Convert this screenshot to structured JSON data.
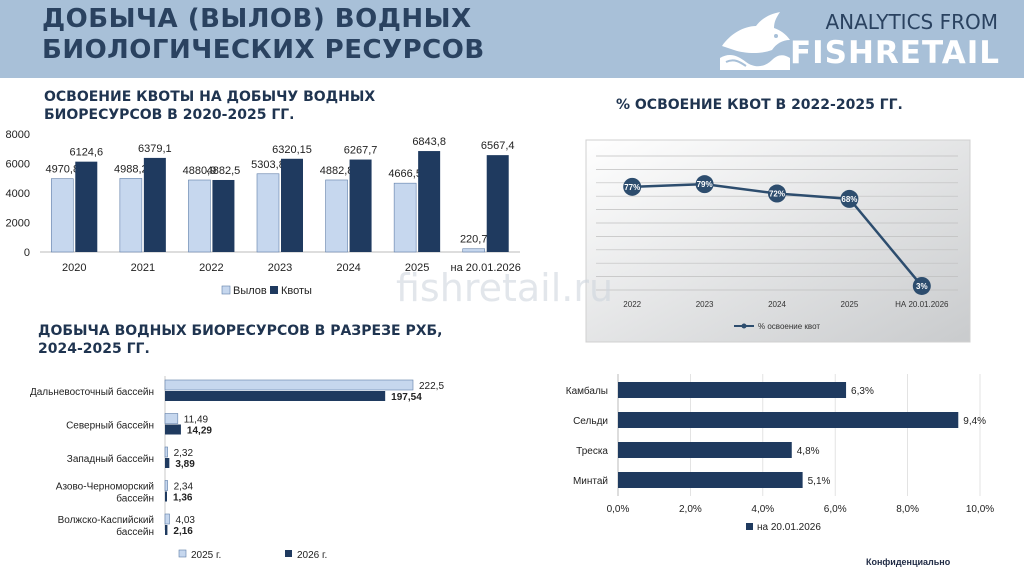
{
  "header": {
    "title_line1": "ДОБЫЧА (ВЫЛОВ) ВОДНЫХ",
    "title_line2": "БИОЛОГИЧЕСКИХ РЕСУРСОВ",
    "brand_line1": "ANALYTICS FROM",
    "brand_line2": "FISHRETAIL"
  },
  "watermark": "fishretail.ru",
  "footer": "Конфиденциально",
  "colors": {
    "catch": "#c6d7ee",
    "quota": "#1f3a5f",
    "line": "#2d4d6e",
    "bar": "#1f3a5f"
  },
  "sections": {
    "quota_title_1": "ОСВОЕНИЕ КВОТЫ НА ДОБЫЧУ ВОДНЫХ",
    "quota_title_2": "БИОРЕСУРСОВ В 2020-2025 ГГ.",
    "percent_title": "% ОСВОЕНИЕ КВОТ В 2022-2025 ГГ.",
    "basin_title_1": "ДОБЫЧА ВОДНЫХ БИОРЕСУРСОВ В РАЗРЕЗЕ РХБ,",
    "basin_title_2": "2024-2025 ГГ."
  },
  "chart_data": [
    {
      "type": "bar",
      "categories": [
        "2020",
        "2021",
        "2022",
        "2023",
        "2024",
        "2025",
        "на 20.01.2026"
      ],
      "series": [
        {
          "name": "Вылов",
          "values": [
            4970.8,
            4988.2,
            4880.9,
            5303.8,
            4882.8,
            4666.5,
            220.7
          ],
          "labels": [
            "4970,8",
            "4988,2",
            "4880,9",
            "5303,8",
            "4882,8",
            "4666,5",
            "220,7"
          ]
        },
        {
          "name": "Квоты",
          "values": [
            6124.6,
            6379.1,
            4882.5,
            6320.15,
            6267.7,
            6843.8,
            6567.4
          ],
          "labels": [
            "6124,6",
            "6379,1",
            "4882,5",
            "6320,15",
            "6267,7",
            "6843,8",
            "6567,4"
          ]
        }
      ],
      "yticks": [
        "0",
        "2000",
        "4000",
        "6000",
        "8000"
      ],
      "ylim": [
        0,
        8000
      ],
      "legend": "bottom"
    },
    {
      "type": "line",
      "categories": [
        "2022",
        "2023",
        "2024",
        "2025",
        "НА 20.01.2026"
      ],
      "series": [
        {
          "name": "% освоение квот",
          "values": [
            77,
            79,
            72,
            68,
            3
          ],
          "labels": [
            "77%",
            "79%",
            "72%",
            "68%",
            "3%"
          ]
        }
      ],
      "ylim": [
        0,
        100
      ],
      "grid": true,
      "legend": "bottom"
    },
    {
      "type": "bar",
      "orientation": "horizontal",
      "categories": [
        "Дальневосточный бассейн",
        "Северный бассейн",
        "Западный бассейн",
        "Азово-Черноморский бассейн",
        "Волжско-Каспийский бассейн"
      ],
      "category_lines": [
        [
          "Дальневосточный бассейн"
        ],
        [
          "Северный бассейн"
        ],
        [
          "Западный бассейн"
        ],
        [
          "Азово-Черноморский",
          "бассейн"
        ],
        [
          "Волжско-Каспийский",
          "бассейн"
        ]
      ],
      "series": [
        {
          "name": "2025 г.",
          "values": [
            222.5,
            11.49,
            2.32,
            2.34,
            4.03
          ],
          "labels": [
            "222,5",
            "11,49",
            "2,32",
            "2,34",
            "4,03"
          ]
        },
        {
          "name": "2026 г.",
          "values": [
            197.54,
            14.29,
            3.89,
            1.36,
            2.16
          ],
          "labels": [
            "197,54",
            "14,29",
            "3,89",
            "1,36",
            "2,16"
          ]
        }
      ],
      "xlim": [
        0,
        222.5
      ],
      "legend": "bottom"
    },
    {
      "type": "bar",
      "orientation": "horizontal",
      "categories": [
        "Камбалы",
        "Сельди",
        "Треска",
        "Минтай"
      ],
      "series": [
        {
          "name": "на 20.01.2026",
          "values": [
            6.3,
            9.4,
            4.8,
            5.1
          ],
          "labels": [
            "6,3%",
            "9,4%",
            "4,8%",
            "5,1%"
          ]
        }
      ],
      "xticks": [
        "0,0%",
        "2,0%",
        "4,0%",
        "6,0%",
        "8,0%",
        "10,0%"
      ],
      "xlim": [
        0,
        10
      ],
      "grid": true,
      "legend": "bottom"
    }
  ]
}
